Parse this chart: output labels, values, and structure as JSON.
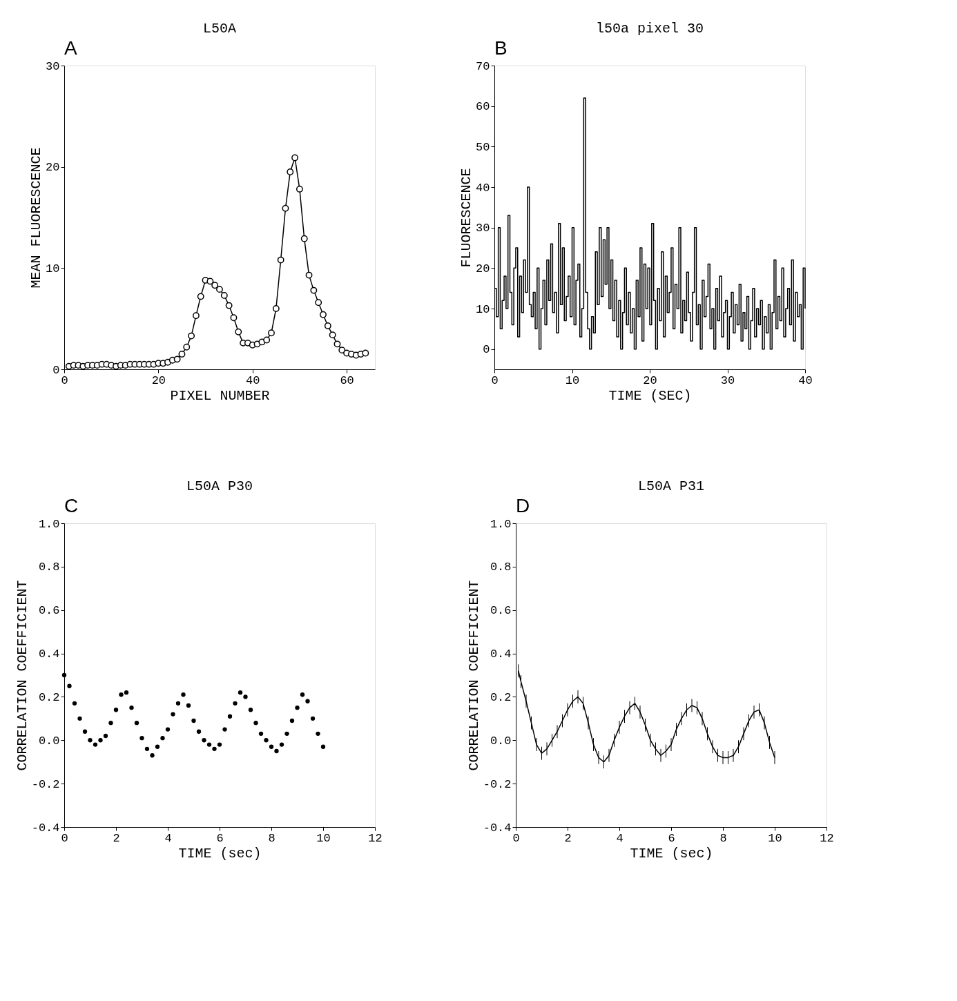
{
  "chart_data": [
    {
      "type": "line",
      "title": "L50A",
      "xlabel": "PIXEL NUMBER",
      "ylabel": "MEAN FLUORESCENCE",
      "annotations": [
        "A"
      ],
      "marker": "circle",
      "color": "#000000",
      "grid": false,
      "x": [
        1,
        2,
        3,
        4,
        5,
        6,
        7,
        8,
        9,
        10,
        11,
        12,
        13,
        14,
        15,
        16,
        17,
        18,
        19,
        20,
        21,
        22,
        23,
        24,
        25,
        26,
        27,
        28,
        29,
        30,
        31,
        32,
        33,
        34,
        35,
        36,
        37,
        38,
        39,
        40,
        41,
        42,
        43,
        44,
        45,
        46,
        47,
        48,
        49,
        50,
        51,
        52,
        53,
        54,
        55,
        56,
        57,
        58,
        59,
        60,
        61,
        62,
        63,
        64
      ],
      "values": [
        0.3,
        0.4,
        0.4,
        0.3,
        0.4,
        0.4,
        0.4,
        0.5,
        0.5,
        0.4,
        0.3,
        0.4,
        0.4,
        0.5,
        0.5,
        0.5,
        0.5,
        0.5,
        0.5,
        0.6,
        0.6,
        0.7,
        0.9,
        1.0,
        1.5,
        2.2,
        3.3,
        5.3,
        7.2,
        8.8,
        8.7,
        8.3,
        7.9,
        7.3,
        6.3,
        5.1,
        3.7,
        2.6,
        2.6,
        2.4,
        2.5,
        2.7,
        2.9,
        3.6,
        6.0,
        10.8,
        15.9,
        19.5,
        20.9,
        17.8,
        12.9,
        9.3,
        7.8,
        6.6,
        5.4,
        4.3,
        3.4,
        2.5,
        1.9,
        1.6,
        1.5,
        1.4,
        1.5,
        1.6
      ],
      "xlim": [
        0,
        66
      ],
      "xticks": [
        0,
        20,
        40,
        60
      ],
      "ylim": [
        0,
        30
      ],
      "yticks": [
        0,
        10,
        20,
        30
      ]
    },
    {
      "type": "step",
      "title": "l50a pixel 30",
      "xlabel": "TIME (SEC)",
      "ylabel": "FLUORESCENCE",
      "annotations": [
        "B"
      ],
      "color": "#000000",
      "grid": false,
      "x": [
        0,
        0.25,
        0.5,
        0.75,
        1,
        1.25,
        1.5,
        1.75,
        2,
        2.25,
        2.5,
        2.75,
        3,
        3.25,
        3.5,
        3.75,
        4,
        4.25,
        4.5,
        4.75,
        5,
        5.25,
        5.5,
        5.75,
        6,
        6.25,
        6.5,
        6.75,
        7,
        7.25,
        7.5,
        7.75,
        8,
        8.25,
        8.5,
        8.75,
        9,
        9.25,
        9.5,
        9.75,
        10,
        10.25,
        10.5,
        10.75,
        11,
        11.25,
        11.5,
        11.75,
        12,
        12.25,
        12.5,
        12.75,
        13,
        13.25,
        13.5,
        13.75,
        14,
        14.25,
        14.5,
        14.75,
        15,
        15.25,
        15.5,
        15.75,
        16,
        16.25,
        16.5,
        16.75,
        17,
        17.25,
        17.5,
        17.75,
        18,
        18.25,
        18.5,
        18.75,
        19,
        19.25,
        19.5,
        19.75,
        20,
        20.25,
        20.5,
        20.75,
        21,
        21.25,
        21.5,
        21.75,
        22,
        22.25,
        22.5,
        22.75,
        23,
        23.25,
        23.5,
        23.75,
        24,
        24.25,
        24.5,
        24.75,
        25,
        25.25,
        25.5,
        25.75,
        26,
        26.25,
        26.5,
        26.75,
        27,
        27.25,
        27.5,
        27.75,
        28,
        28.25,
        28.5,
        28.75,
        29,
        29.25,
        29.5,
        29.75,
        30,
        30.25,
        30.5,
        30.75,
        31,
        31.25,
        31.5,
        31.75,
        32,
        32.25,
        32.5,
        32.75,
        33,
        33.25,
        33.5,
        33.75,
        34,
        34.25,
        34.5,
        34.75,
        35,
        35.25,
        35.5,
        35.75,
        36,
        36.25,
        36.5,
        36.75,
        37,
        37.25,
        37.5,
        37.75,
        38,
        38.25,
        38.5,
        38.75,
        39,
        39.25,
        39.5,
        39.75,
        40
      ],
      "values": [
        15,
        8,
        30,
        5,
        12,
        18,
        10,
        33,
        14,
        6,
        20,
        25,
        3,
        18,
        9,
        22,
        14,
        40,
        11,
        8,
        14,
        5,
        20,
        0,
        10,
        17,
        6,
        22,
        12,
        26,
        9,
        14,
        4,
        31,
        11,
        25,
        7,
        13,
        18,
        8,
        30,
        6,
        17,
        21,
        3,
        10,
        62,
        14,
        5,
        0,
        8,
        4,
        24,
        11,
        30,
        13,
        27,
        16,
        30,
        10,
        22,
        7,
        17,
        3,
        12,
        0,
        9,
        20,
        6,
        14,
        4,
        10,
        0,
        17,
        8,
        25,
        2,
        21,
        10,
        20,
        6,
        31,
        12,
        0,
        15,
        7,
        24,
        3,
        18,
        9,
        14,
        25,
        5,
        16,
        10,
        30,
        4,
        12,
        7,
        19,
        9,
        2,
        14,
        30,
        6,
        11,
        0,
        17,
        8,
        13,
        21,
        5,
        10,
        0,
        15,
        7,
        18,
        3,
        9,
        12,
        0,
        8,
        14,
        4,
        11,
        6,
        16,
        2,
        9,
        5,
        13,
        0,
        7,
        15,
        3,
        10,
        6,
        12,
        0,
        8,
        4,
        11,
        0,
        9,
        22,
        5,
        13,
        7,
        20,
        3,
        10,
        15,
        6,
        22,
        2,
        14,
        8,
        11,
        0,
        20,
        10
      ],
      "xlim": [
        0,
        40
      ],
      "xticks": [
        0,
        10,
        20,
        30,
        40
      ],
      "ylim": [
        -5,
        70
      ],
      "yticks": [
        0,
        10,
        20,
        30,
        40,
        50,
        60,
        70
      ]
    },
    {
      "type": "scatter",
      "title": "L50A P30",
      "xlabel": "TIME (sec)",
      "ylabel": "CORRELATION COEFFICIENT",
      "annotations": [
        "C"
      ],
      "marker": "circle",
      "color": "#000000",
      "grid": false,
      "x": [
        0,
        0.2,
        0.4,
        0.6,
        0.8,
        1,
        1.2,
        1.4,
        1.6,
        1.8,
        2,
        2.2,
        2.4,
        2.6,
        2.8,
        3,
        3.2,
        3.4,
        3.6,
        3.8,
        4,
        4.2,
        4.4,
        4.6,
        4.8,
        5,
        5.2,
        5.4,
        5.6,
        5.8,
        6,
        6.2,
        6.4,
        6.6,
        6.8,
        7,
        7.2,
        7.4,
        7.6,
        7.8,
        8,
        8.2,
        8.4,
        8.6,
        8.8,
        9,
        9.2,
        9.4,
        9.6,
        9.8,
        10
      ],
      "values": [
        0.3,
        0.25,
        0.17,
        0.1,
        0.04,
        0.0,
        -0.02,
        0.0,
        0.02,
        0.08,
        0.14,
        0.21,
        0.22,
        0.15,
        0.08,
        0.01,
        -0.04,
        -0.07,
        -0.03,
        0.01,
        0.05,
        0.12,
        0.17,
        0.21,
        0.16,
        0.09,
        0.04,
        0.0,
        -0.02,
        -0.04,
        -0.02,
        0.05,
        0.11,
        0.17,
        0.22,
        0.2,
        0.14,
        0.08,
        0.03,
        0.0,
        -0.03,
        -0.05,
        -0.02,
        0.03,
        0.09,
        0.15,
        0.21,
        0.18,
        0.1,
        0.03,
        -0.03
      ],
      "xlim": [
        0,
        12
      ],
      "xticks": [
        0,
        2,
        4,
        6,
        8,
        10,
        12
      ],
      "ylim": [
        -0.4,
        1.0
      ],
      "yticks": [
        {
          "value": -0.4,
          "label": "-0.4"
        },
        {
          "value": -0.2,
          "label": "-0.2"
        },
        {
          "value": 0,
          "label": "0.0"
        },
        {
          "value": 0.2,
          "label": "0.2"
        },
        {
          "value": 0.4,
          "label": "0.4"
        },
        {
          "value": 0.6,
          "label": "0.6"
        },
        {
          "value": 0.8,
          "label": "0.8"
        },
        {
          "value": 1.0,
          "label": "1.0"
        }
      ]
    },
    {
      "type": "line",
      "title": "L50A P31",
      "xlabel": "TIME (sec)",
      "ylabel": "CORRELATION COEFFICIENT",
      "annotations": [
        "D"
      ],
      "color": "#000000",
      "grid": false,
      "x": [
        0.1,
        0.2,
        0.4,
        0.6,
        0.8,
        1,
        1.2,
        1.4,
        1.6,
        1.8,
        2,
        2.2,
        2.4,
        2.6,
        2.8,
        3,
        3.2,
        3.4,
        3.6,
        3.8,
        4,
        4.2,
        4.4,
        4.6,
        4.8,
        5,
        5.2,
        5.4,
        5.6,
        5.8,
        6,
        6.2,
        6.4,
        6.6,
        6.8,
        7,
        7.2,
        7.4,
        7.6,
        7.8,
        8,
        8.2,
        8.4,
        8.6,
        8.8,
        9,
        9.2,
        9.4,
        9.6,
        9.8,
        10
      ],
      "values": [
        0.32,
        0.27,
        0.18,
        0.08,
        -0.02,
        -0.06,
        -0.04,
        0.0,
        0.04,
        0.09,
        0.14,
        0.18,
        0.2,
        0.17,
        0.08,
        -0.02,
        -0.08,
        -0.1,
        -0.07,
        0.0,
        0.06,
        0.11,
        0.15,
        0.17,
        0.13,
        0.07,
        0.0,
        -0.04,
        -0.07,
        -0.05,
        -0.02,
        0.05,
        0.1,
        0.14,
        0.16,
        0.15,
        0.1,
        0.03,
        -0.03,
        -0.07,
        -0.08,
        -0.08,
        -0.07,
        -0.03,
        0.03,
        0.09,
        0.13,
        0.14,
        0.08,
        -0.01,
        -0.08
      ],
      "errors": [
        0.03,
        0.03,
        0.03,
        0.03,
        0.03,
        0.03,
        0.03,
        0.03,
        0.03,
        0.03,
        0.03,
        0.03,
        0.03,
        0.03,
        0.03,
        0.03,
        0.03,
        0.03,
        0.03,
        0.03,
        0.03,
        0.03,
        0.03,
        0.03,
        0.03,
        0.03,
        0.03,
        0.03,
        0.03,
        0.03,
        0.03,
        0.03,
        0.03,
        0.03,
        0.03,
        0.03,
        0.03,
        0.03,
        0.03,
        0.03,
        0.03,
        0.03,
        0.03,
        0.03,
        0.03,
        0.03,
        0.03,
        0.03,
        0.03,
        0.03,
        0.03
      ],
      "xlim": [
        0,
        12
      ],
      "xticks": [
        0,
        2,
        4,
        6,
        8,
        10,
        12
      ],
      "ylim": [
        -0.4,
        1.0
      ],
      "yticks": [
        {
          "value": -0.4,
          "label": "-0.4"
        },
        {
          "value": -0.2,
          "label": "-0.2"
        },
        {
          "value": 0,
          "label": "0.0"
        },
        {
          "value": 0.2,
          "label": "0.2"
        },
        {
          "value": 0.4,
          "label": "0.4"
        },
        {
          "value": 0.6,
          "label": "0.6"
        },
        {
          "value": 0.8,
          "label": "0.8"
        },
        {
          "value": 1.0,
          "label": "1.0"
        }
      ]
    }
  ]
}
